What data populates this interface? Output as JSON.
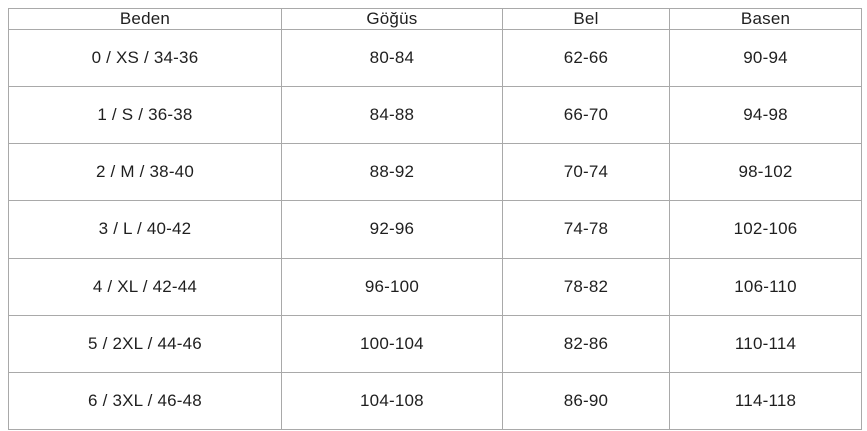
{
  "chart_data": {
    "type": "table",
    "title": "",
    "columns": [
      "Beden",
      "Göğüs",
      "Bel",
      "Basen"
    ],
    "rows": [
      [
        "0 / XS / 34-36",
        "80-84",
        "62-66",
        "90-94"
      ],
      [
        "1 / S / 36-38",
        "84-88",
        "66-70",
        "94-98"
      ],
      [
        "2 / M / 38-40",
        "88-92",
        "70-74",
        "98-102"
      ],
      [
        "3 / L / 40-42",
        "92-96",
        "74-78",
        "102-106"
      ],
      [
        "4 / XL / 42-44",
        "96-100",
        "78-82",
        "106-110"
      ],
      [
        "5 / 2XL / 44-46",
        "100-104",
        "82-86",
        "110-114"
      ],
      [
        "6 / 3XL / 46-48",
        "104-108",
        "86-90",
        "114-118"
      ]
    ]
  },
  "table": {
    "columns": [
      "Beden",
      "Göğüs",
      "Bel",
      "Basen"
    ],
    "rows": [
      {
        "cells": [
          "0 / XS / 34-36",
          "80-84",
          "62-66",
          "90-94"
        ]
      },
      {
        "cells": [
          "1 / S / 36-38",
          "84-88",
          "66-70",
          "94-98"
        ]
      },
      {
        "cells": [
          "2 / M / 38-40",
          "88-92",
          "70-74",
          "98-102"
        ]
      },
      {
        "cells": [
          "3 / L / 40-42",
          "92-96",
          "74-78",
          "102-106"
        ]
      },
      {
        "cells": [
          "4 / XL / 42-44",
          "96-100",
          "78-82",
          "106-110"
        ]
      },
      {
        "cells": [
          "5 / 2XL / 44-46",
          "100-104",
          "82-86",
          "110-114"
        ]
      },
      {
        "cells": [
          "6 / 3XL / 46-48",
          "104-108",
          "86-90",
          "114-118"
        ]
      }
    ]
  },
  "colors": {
    "border": "#a9a9a9",
    "text": "#1f1f1f",
    "background": "#ffffff"
  }
}
